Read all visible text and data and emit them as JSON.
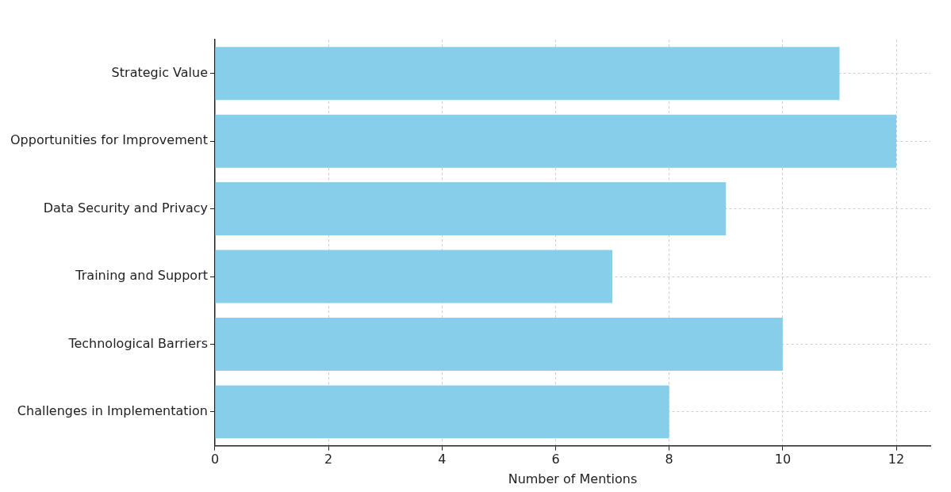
{
  "chart_data": {
    "type": "bar",
    "orientation": "horizontal",
    "xlabel": "Number of Mentions",
    "categories": [
      "Strategic Value",
      "Opportunities for Improvement",
      "Data Security and Privacy",
      "Training and Support",
      "Technological Barriers",
      "Challenges in Implementation"
    ],
    "values": [
      11,
      12,
      9,
      7,
      10,
      8
    ],
    "color": "#87ceeb",
    "xlim": [
      0,
      12.6
    ],
    "xticks": [
      0,
      2,
      4,
      6,
      8,
      10,
      12
    ],
    "grid": true
  }
}
